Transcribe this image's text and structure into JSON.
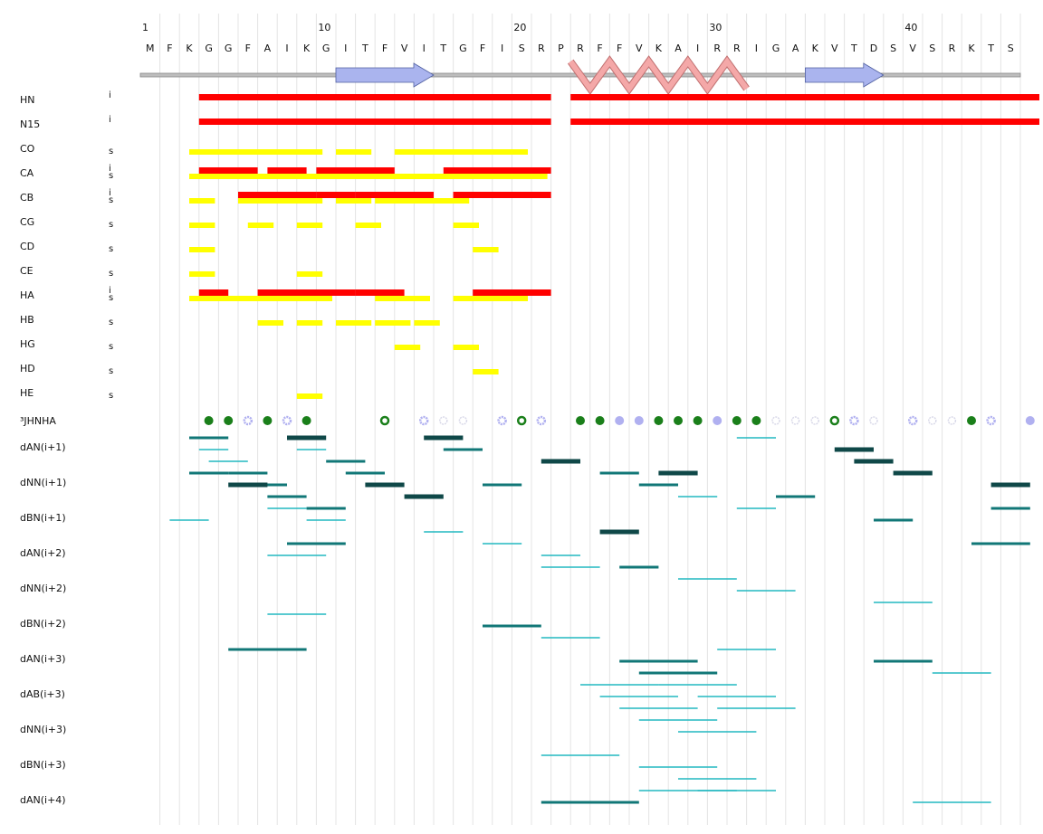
{
  "sequence": {
    "residues": [
      "M",
      "F",
      "K",
      "G",
      "G",
      "F",
      "A",
      "I",
      "K",
      "G",
      "I",
      "T",
      "F",
      "V",
      "I",
      "T",
      "G",
      "F",
      "I",
      "S",
      "R",
      "P",
      "R",
      "F",
      "F",
      "V",
      "K",
      "A",
      "I",
      "R",
      "R",
      "I",
      "G",
      "A",
      "K",
      "V",
      "T",
      "D",
      "S",
      "V",
      "S",
      "R",
      "K",
      "T",
      "S"
    ],
    "numbers": [
      "1",
      "10",
      "20",
      "30",
      "40"
    ]
  },
  "secondary_structure": [
    {
      "type": "coil",
      "start": 1,
      "end": 45
    },
    {
      "type": "strand",
      "start": 11,
      "end": 15
    },
    {
      "type": "helix",
      "start": 23,
      "end": 31
    },
    {
      "type": "strand",
      "start": 35,
      "end": 38
    }
  ],
  "colors": {
    "identified": "#ff0000",
    "stereo": "#ffff00",
    "strand": "#aab4ee",
    "helix": "#f4a8a8",
    "jcoupling_fill": "#1a7f1a",
    "jcoupling_open": "#b0b0f0",
    "noe_strong": "#0f4848",
    "noe_medium": "#117777",
    "noe_weak": "#22b8c0"
  },
  "assignment_rows": [
    {
      "label": "HN",
      "type": "i",
      "red": [
        [
          4,
          21
        ]
      ],
      "yellow": []
    },
    {
      "label": "N15",
      "type": "i",
      "red": [
        [
          4,
          21
        ]
      ],
      "yellow": []
    },
    {
      "label": "CO",
      "type": "s",
      "red": [],
      "yellow": [
        [
          3.5,
          9.5
        ],
        [
          11,
          12
        ],
        [
          14,
          20
        ]
      ]
    },
    {
      "label": "CA",
      "type": "i\ns",
      "red": [
        [
          4,
          6
        ],
        [
          7.5,
          8.5
        ],
        [
          10,
          13
        ],
        [
          16.5,
          21
        ]
      ],
      "yellow": [
        [
          3.5,
          21
        ]
      ]
    },
    {
      "label": "CB",
      "type": "i\ns",
      "red": [
        [
          6,
          9
        ],
        [
          10,
          11
        ],
        [
          12,
          15
        ],
        [
          17,
          21
        ]
      ],
      "yellow": [
        [
          3.5,
          4
        ],
        [
          6,
          9.5
        ],
        [
          11,
          12
        ],
        [
          13,
          17
        ]
      ]
    },
    {
      "label": "CG",
      "type": "s",
      "red": [],
      "yellow": [
        [
          3.5,
          4
        ],
        [
          6.5,
          7
        ],
        [
          9,
          9.5
        ],
        [
          12,
          12.5
        ],
        [
          17,
          17.5
        ]
      ]
    },
    {
      "label": "CD",
      "type": "s",
      "red": [],
      "yellow": [
        [
          3.5,
          4
        ],
        [
          18,
          18.5
        ]
      ]
    },
    {
      "label": "CE",
      "type": "s",
      "red": [],
      "yellow": [
        [
          3.5,
          4
        ],
        [
          9,
          9.5
        ]
      ]
    },
    {
      "label": "HA",
      "type": "i\ns",
      "red": [
        [
          4,
          4.5
        ],
        [
          7,
          8.5
        ],
        [
          9,
          11
        ],
        [
          12,
          13.5
        ],
        [
          18,
          21
        ]
      ],
      "yellow": [
        [
          3.5,
          10
        ],
        [
          13,
          15
        ],
        [
          17,
          20
        ]
      ]
    },
    {
      "label": "HB",
      "type": "s",
      "red": [],
      "yellow": [
        [
          7,
          7.5
        ],
        [
          9,
          9.5
        ],
        [
          11,
          12
        ],
        [
          13,
          14
        ],
        [
          15,
          15.5
        ]
      ]
    },
    {
      "label": "HG",
      "type": "s",
      "red": [],
      "yellow": [
        [
          14,
          14.5
        ],
        [
          17,
          17.5
        ]
      ]
    },
    {
      "label": "HD",
      "type": "s",
      "red": [],
      "yellow": [
        [
          18,
          18.5
        ]
      ]
    },
    {
      "label": "HE",
      "type": "s",
      "red": [],
      "yellow": [
        [
          9,
          9.5
        ]
      ]
    }
  ],
  "jcoupling": {
    "label": "³JHNHA",
    "markers": [
      {
        "res": 4,
        "kind": "filled"
      },
      {
        "res": 5,
        "kind": "filled"
      },
      {
        "res": 6,
        "kind": "open-star"
      },
      {
        "res": 7,
        "kind": "filled"
      },
      {
        "res": 8,
        "kind": "open-star"
      },
      {
        "res": 9,
        "kind": "filled"
      },
      {
        "res": 13,
        "kind": "ring"
      },
      {
        "res": 15,
        "kind": "open-star"
      },
      {
        "res": 16,
        "kind": "open-ring"
      },
      {
        "res": 17,
        "kind": "open-ring"
      },
      {
        "res": 19,
        "kind": "open-star"
      },
      {
        "res": 20,
        "kind": "ring"
      },
      {
        "res": 21,
        "kind": "open-star"
      },
      {
        "res": 23,
        "kind": "filled"
      },
      {
        "res": 24,
        "kind": "filled"
      },
      {
        "res": 25,
        "kind": "light"
      },
      {
        "res": 26,
        "kind": "light"
      },
      {
        "res": 27,
        "kind": "filled"
      },
      {
        "res": 28,
        "kind": "filled"
      },
      {
        "res": 29,
        "kind": "filled"
      },
      {
        "res": 30,
        "kind": "light"
      },
      {
        "res": 31,
        "kind": "filled"
      },
      {
        "res": 32,
        "kind": "filled"
      },
      {
        "res": 33,
        "kind": "open-ring"
      },
      {
        "res": 34,
        "kind": "open-ring"
      },
      {
        "res": 35,
        "kind": "open-ring"
      },
      {
        "res": 36,
        "kind": "ring"
      },
      {
        "res": 37,
        "kind": "open-star"
      },
      {
        "res": 38,
        "kind": "open-ring"
      },
      {
        "res": 40,
        "kind": "open-star"
      },
      {
        "res": 41,
        "kind": "open-ring"
      },
      {
        "res": 42,
        "kind": "open-ring"
      },
      {
        "res": 43,
        "kind": "filled"
      },
      {
        "res": 44,
        "kind": "open-star"
      },
      {
        "res": 46,
        "kind": "light"
      }
    ]
  },
  "noe_rows": [
    {
      "label": "dAN(i+1)",
      "lines": [
        {
          "from": 3,
          "to": 5,
          "level": "noe_medium"
        },
        {
          "from": 3.5,
          "to": 5,
          "level": "noe_weak"
        },
        {
          "from": 4,
          "to": 6,
          "level": "noe_weak"
        },
        {
          "from": 5,
          "to": 7,
          "level": "noe_medium"
        },
        {
          "from": 6,
          "to": 8,
          "level": "noe_medium"
        },
        {
          "from": 7,
          "to": 8,
          "level": "noe_weak"
        },
        {
          "from": 8,
          "to": 10,
          "level": "noe_strong"
        },
        {
          "from": 8.5,
          "to": 10,
          "level": "noe_weak"
        },
        {
          "from": 10,
          "to": 12,
          "level": "noe_medium"
        },
        {
          "from": 11,
          "to": 13,
          "level": "noe_medium"
        },
        {
          "from": 12,
          "to": 14,
          "level": "noe_strong"
        },
        {
          "from": 14,
          "to": 16,
          "level": "noe_strong"
        },
        {
          "from": 15,
          "to": 17,
          "level": "noe_strong"
        },
        {
          "from": 16,
          "to": 18,
          "level": "noe_medium"
        },
        {
          "from": 21,
          "to": 23,
          "level": "noe_strong"
        },
        {
          "from": 24,
          "to": 26,
          "level": "noe_medium"
        },
        {
          "from": 26,
          "to": 28,
          "level": "noe_medium"
        },
        {
          "from": 28,
          "to": 30,
          "level": "noe_weak"
        },
        {
          "from": 31,
          "to": 33,
          "level": "noe_weak"
        },
        {
          "from": 36,
          "to": 38,
          "level": "noe_strong"
        },
        {
          "from": 37,
          "to": 39,
          "level": "noe_strong"
        },
        {
          "from": 39,
          "to": 41,
          "level": "noe_strong"
        },
        {
          "from": 44,
          "to": 46,
          "level": "noe_strong"
        }
      ]
    },
    {
      "label": "dNN(i+1)",
      "lines": [
        {
          "from": 3,
          "to": 5,
          "level": "noe_medium"
        },
        {
          "from": 5,
          "to": 7,
          "level": "noe_strong"
        },
        {
          "from": 7,
          "to": 9,
          "level": "noe_medium"
        },
        {
          "from": 9,
          "to": 11,
          "level": "noe_medium"
        },
        {
          "from": 2,
          "to": 4,
          "level": "noe_weak"
        },
        {
          "from": 24,
          "to": 26,
          "level": "noe_strong"
        },
        {
          "from": 27,
          "to": 29,
          "level": "noe_strong"
        },
        {
          "from": 18,
          "to": 20,
          "level": "noe_medium"
        },
        {
          "from": 33,
          "to": 35,
          "level": "noe_medium"
        },
        {
          "from": 44,
          "to": 46,
          "level": "noe_medium"
        }
      ]
    },
    {
      "label": "dBN(i+1)",
      "lines": [
        {
          "from": 7,
          "to": 9,
          "level": "noe_weak"
        },
        {
          "from": 9,
          "to": 11,
          "level": "noe_weak"
        },
        {
          "from": 15,
          "to": 17,
          "level": "noe_weak"
        },
        {
          "from": 18,
          "to": 20,
          "level": "noe_weak"
        },
        {
          "from": 21,
          "to": 23,
          "level": "noe_weak"
        },
        {
          "from": 25,
          "to": 27,
          "level": "noe_medium"
        },
        {
          "from": 31,
          "to": 33,
          "level": "noe_weak"
        },
        {
          "from": 38,
          "to": 40,
          "level": "noe_medium"
        }
      ]
    },
    {
      "label": "dAN(i+2)",
      "lines": [
        {
          "from": 8,
          "to": 11,
          "level": "noe_medium"
        },
        {
          "from": 7,
          "to": 10,
          "level": "noe_weak"
        },
        {
          "from": 21,
          "to": 24,
          "level": "noe_weak"
        },
        {
          "from": 28,
          "to": 31,
          "level": "noe_weak"
        },
        {
          "from": 31,
          "to": 34,
          "level": "noe_weak"
        },
        {
          "from": 38,
          "to": 41,
          "level": "noe_weak"
        },
        {
          "from": 43,
          "to": 46,
          "level": "noe_medium"
        }
      ]
    },
    {
      "label": "dNN(i+2)",
      "lines": []
    },
    {
      "label": "dBN(i+2)",
      "lines": [
        {
          "from": 7,
          "to": 10,
          "level": "noe_weak"
        },
        {
          "from": 18,
          "to": 21,
          "level": "noe_medium"
        },
        {
          "from": 21,
          "to": 24,
          "level": "noe_weak"
        },
        {
          "from": 30,
          "to": 33,
          "level": "noe_weak"
        },
        {
          "from": 38,
          "to": 41,
          "level": "noe_medium"
        },
        {
          "from": 41,
          "to": 44,
          "level": "noe_weak"
        }
      ]
    },
    {
      "label": "dAN(i+3)",
      "lines": [
        {
          "from": 5,
          "to": 9,
          "level": "noe_medium"
        },
        {
          "from": 25,
          "to": 29,
          "level": "noe_medium"
        },
        {
          "from": 26,
          "to": 30,
          "level": "noe_medium"
        },
        {
          "from": 27,
          "to": 31,
          "level": "noe_weak"
        },
        {
          "from": 29,
          "to": 33,
          "level": "noe_weak"
        },
        {
          "from": 30,
          "to": 34,
          "level": "noe_weak"
        }
      ]
    },
    {
      "label": "dAB(i+3)",
      "lines": [
        {
          "from": 23,
          "to": 27,
          "level": "noe_weak"
        },
        {
          "from": 24,
          "to": 28,
          "level": "noe_weak"
        },
        {
          "from": 25,
          "to": 29,
          "level": "noe_weak"
        },
        {
          "from": 26,
          "to": 30,
          "level": "noe_weak"
        },
        {
          "from": 28,
          "to": 32,
          "level": "noe_weak"
        }
      ]
    },
    {
      "label": "dNN(i+3)",
      "lines": []
    },
    {
      "label": "dBN(i+3)",
      "lines": [
        {
          "from": 21,
          "to": 25,
          "level": "noe_weak"
        },
        {
          "from": 26,
          "to": 30,
          "level": "noe_weak"
        },
        {
          "from": 28,
          "to": 32,
          "level": "noe_weak"
        },
        {
          "from": 29,
          "to": 33,
          "level": "noe_weak"
        },
        {
          "from": 40,
          "to": 44,
          "level": "noe_weak"
        }
      ]
    },
    {
      "label": "dAN(i+4)",
      "lines": [
        {
          "from": 26,
          "to": 31,
          "level": "noe_weak"
        },
        {
          "from": 21,
          "to": 26,
          "level": "noe_medium"
        }
      ]
    }
  ]
}
